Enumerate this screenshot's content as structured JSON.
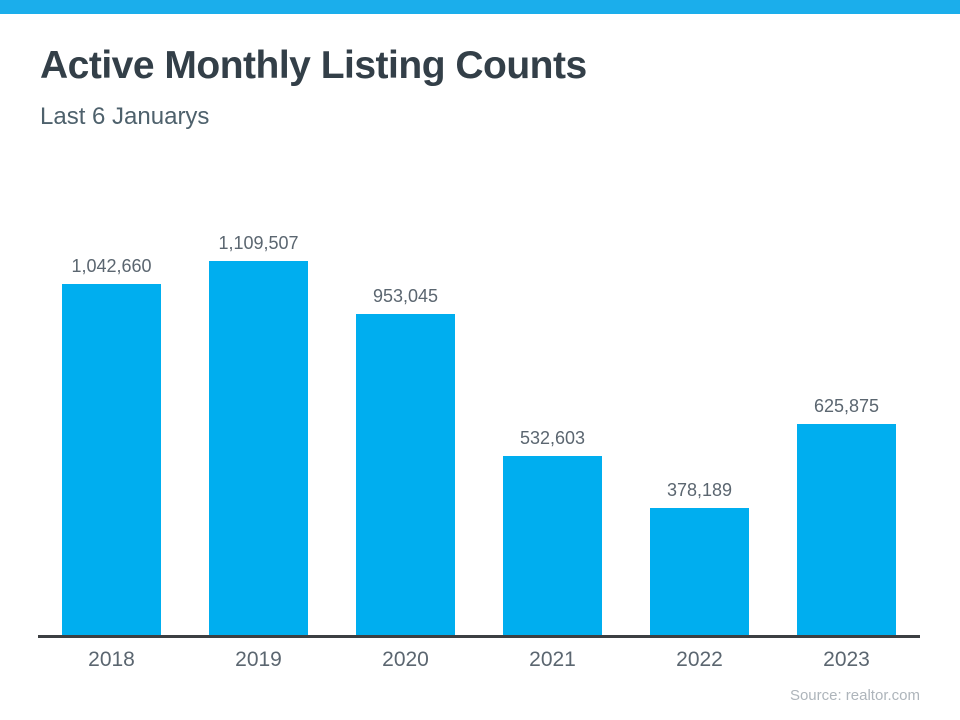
{
  "header": {
    "title": "Active Monthly Listing Counts",
    "subtitle": "Last 6 Januarys"
  },
  "footer": {
    "source": "Source: realtor.com"
  },
  "colors": {
    "banner_accent": "#1BAEEB",
    "bar": "#00AEEF",
    "title_text": "#333F48",
    "subtitle_text": "#4E616C",
    "label_text": "#5B6670",
    "axis_line": "#3C3F42",
    "source_text": "#AEB5BB"
  },
  "chart_data": {
    "type": "bar",
    "title": "Active Monthly Listing Counts",
    "subtitle": "Last 6 Januarys",
    "categories": [
      "2018",
      "2019",
      "2020",
      "2021",
      "2022",
      "2023"
    ],
    "values": [
      1042660,
      1109507,
      953045,
      532603,
      378189,
      625875
    ],
    "value_labels": [
      "1,042,660",
      "1,109,507",
      "953,045",
      "532,603",
      "378,189",
      "625,875"
    ],
    "xlabel": "",
    "ylabel": "",
    "ylim": [
      0,
      1200000
    ],
    "grid": false,
    "legend": false,
    "bar_color": "#00AEEF",
    "source": "Source: realtor.com"
  }
}
